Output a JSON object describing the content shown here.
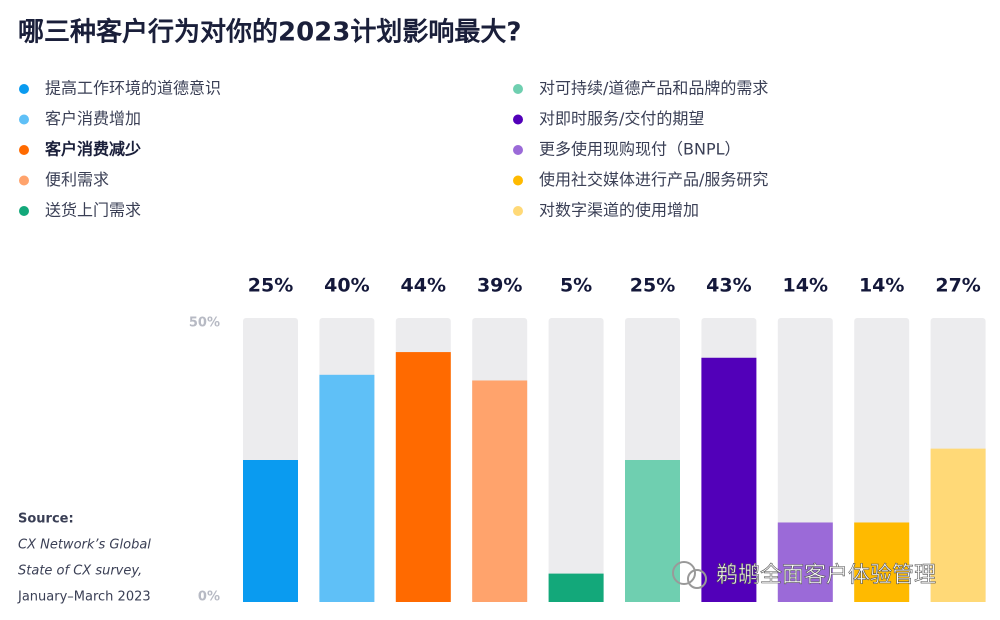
{
  "chart_data": {
    "type": "bar",
    "title": "哪三种客户行为对你的2023计划影响最大?",
    "categories": [
      "提高工作环境的道德意识",
      "客户消费增加",
      "客户消费减少",
      "便利需求",
      "送货上门需求",
      "对可持续/道德产品和品牌的需求",
      "对即时服务/交付的期望",
      "更多使用现购现付（BNPL）",
      "使用社交媒体进行产品/服务研究",
      "对数字渠道的使用增加"
    ],
    "values": [
      25,
      40,
      44,
      39,
      5,
      25,
      43,
      14,
      14,
      27
    ],
    "value_labels": [
      "25%",
      "40%",
      "44%",
      "39%",
      "5%",
      "25%",
      "43%",
      "14%",
      "14%",
      "27%"
    ],
    "colors": [
      "#0a9bf0",
      "#5fc0f7",
      "#ff6a00",
      "#ffa36c",
      "#13a87a",
      "#6fcfb0",
      "#5200b9",
      "#9b6ad8",
      "#ffba00",
      "#ffd977"
    ],
    "ylim": [
      0,
      50
    ],
    "yticks": [
      {
        "value": 0,
        "label": "0%"
      },
      {
        "value": 50,
        "label": "50%"
      }
    ],
    "source": [
      "Source:",
      "CX Network’s Global",
      "State of CX survey,",
      "January–March 2023"
    ],
    "watermark": "鹈鹕全面客户体验管理"
  }
}
